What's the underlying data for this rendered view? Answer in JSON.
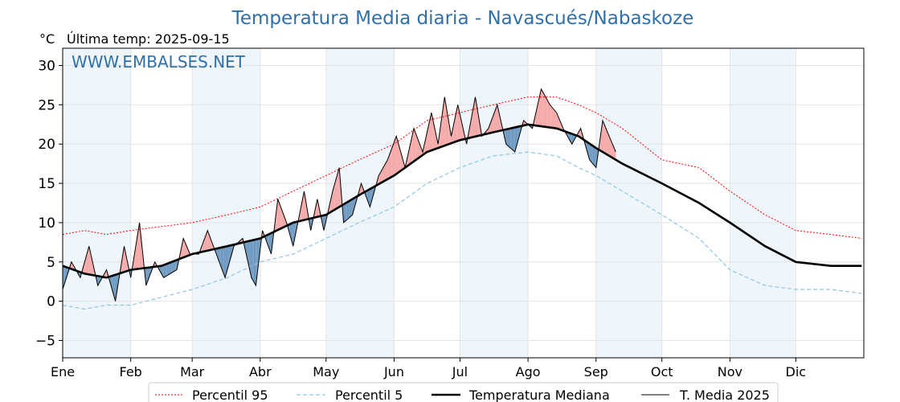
{
  "colors": {
    "title": "#3070a8",
    "p95": "#ff0000",
    "p5": "#8ec8e0",
    "median": "#000000",
    "current": "#000000",
    "above_fill": "#f4a8a8",
    "below_fill": "#6d98c0",
    "band": "#eef5fb",
    "grid": "#e4e4e4"
  },
  "chart_data": {
    "type": "line",
    "title": "Temperatura Media diaria - Navascués/Nabaskoze",
    "unit": "°C",
    "subtitle": "Última temp: 2025-09-15",
    "watermark": "WWW.EMBALSES.NET",
    "x_unit": "day of year",
    "ylim": [
      -7.2,
      32.2
    ],
    "yticks": [
      -5,
      0,
      5,
      10,
      15,
      20,
      25,
      30
    ],
    "months": [
      {
        "label": "Ene",
        "day": 0
      },
      {
        "label": "Feb",
        "day": 31
      },
      {
        "label": "Mar",
        "day": 59
      },
      {
        "label": "Abr",
        "day": 90
      },
      {
        "label": "May",
        "day": 120
      },
      {
        "label": "Jun",
        "day": 151
      },
      {
        "label": "Jul",
        "day": 181
      },
      {
        "label": "Ago",
        "day": 212
      },
      {
        "label": "Sep",
        "day": 243
      },
      {
        "label": "Oct",
        "day": 273
      },
      {
        "label": "Nov",
        "day": 304
      },
      {
        "label": "Dic",
        "day": 334
      }
    ],
    "grid": true,
    "legend_position": "bottom-center",
    "series": [
      {
        "name": "Percentil 95",
        "style": "dotted-red",
        "points": [
          [
            0,
            8.5
          ],
          [
            10,
            9
          ],
          [
            20,
            8.5
          ],
          [
            31,
            9
          ],
          [
            45,
            9.5
          ],
          [
            59,
            10
          ],
          [
            75,
            11
          ],
          [
            90,
            12
          ],
          [
            105,
            14
          ],
          [
            120,
            16
          ],
          [
            135,
            18
          ],
          [
            151,
            20
          ],
          [
            166,
            23
          ],
          [
            181,
            24
          ],
          [
            196,
            25
          ],
          [
            212,
            26
          ],
          [
            225,
            26
          ],
          [
            235,
            25
          ],
          [
            243,
            24
          ],
          [
            255,
            22
          ],
          [
            273,
            18
          ],
          [
            290,
            17
          ],
          [
            304,
            14
          ],
          [
            320,
            11
          ],
          [
            334,
            9
          ],
          [
            350,
            8.5
          ],
          [
            364,
            8
          ]
        ]
      },
      {
        "name": "Percentil 5",
        "style": "dashed-lightblue",
        "points": [
          [
            0,
            -0.5
          ],
          [
            10,
            -1
          ],
          [
            20,
            -0.5
          ],
          [
            31,
            -0.5
          ],
          [
            45,
            0.5
          ],
          [
            59,
            1.5
          ],
          [
            75,
            3
          ],
          [
            90,
            5
          ],
          [
            105,
            6
          ],
          [
            120,
            8
          ],
          [
            135,
            10
          ],
          [
            151,
            12
          ],
          [
            166,
            15
          ],
          [
            181,
            17
          ],
          [
            196,
            18.5
          ],
          [
            212,
            19
          ],
          [
            225,
            18.5
          ],
          [
            235,
            17
          ],
          [
            243,
            16
          ],
          [
            255,
            14
          ],
          [
            273,
            11
          ],
          [
            290,
            8
          ],
          [
            304,
            4
          ],
          [
            320,
            2
          ],
          [
            334,
            1.5
          ],
          [
            350,
            1.5
          ],
          [
            364,
            1
          ]
        ]
      },
      {
        "name": "Temperatura Mediana",
        "style": "thick-black",
        "points": [
          [
            0,
            4.5
          ],
          [
            10,
            3.5
          ],
          [
            20,
            3
          ],
          [
            31,
            4
          ],
          [
            45,
            4.5
          ],
          [
            59,
            6
          ],
          [
            75,
            7
          ],
          [
            90,
            8
          ],
          [
            105,
            10
          ],
          [
            120,
            11
          ],
          [
            135,
            13.5
          ],
          [
            151,
            16
          ],
          [
            166,
            19
          ],
          [
            181,
            20.5
          ],
          [
            196,
            21.5
          ],
          [
            212,
            22.5
          ],
          [
            225,
            22
          ],
          [
            235,
            21
          ],
          [
            243,
            19.5
          ],
          [
            255,
            17.5
          ],
          [
            273,
            15
          ],
          [
            290,
            12.5
          ],
          [
            304,
            10
          ],
          [
            320,
            7
          ],
          [
            334,
            5
          ],
          [
            350,
            4.5
          ],
          [
            364,
            4.5
          ]
        ]
      },
      {
        "name": "T. Media 2025",
        "style": "thin-black",
        "points": [
          [
            0,
            1.5
          ],
          [
            4,
            5
          ],
          [
            8,
            3
          ],
          [
            12,
            7
          ],
          [
            16,
            2
          ],
          [
            20,
            4
          ],
          [
            24,
            0
          ],
          [
            28,
            7
          ],
          [
            31,
            3
          ],
          [
            35,
            10
          ],
          [
            38,
            2
          ],
          [
            42,
            5
          ],
          [
            46,
            3
          ],
          [
            52,
            4
          ],
          [
            55,
            8
          ],
          [
            58,
            6
          ],
          [
            62,
            6
          ],
          [
            66,
            9
          ],
          [
            70,
            6
          ],
          [
            74,
            3
          ],
          [
            78,
            7
          ],
          [
            82,
            8
          ],
          [
            86,
            3
          ],
          [
            88,
            2
          ],
          [
            91,
            9
          ],
          [
            95,
            6
          ],
          [
            98,
            13
          ],
          [
            102,
            10
          ],
          [
            105,
            7
          ],
          [
            110,
            14
          ],
          [
            113,
            9
          ],
          [
            116,
            13
          ],
          [
            119,
            9
          ],
          [
            123,
            14
          ],
          [
            126,
            17
          ],
          [
            128,
            10
          ],
          [
            132,
            11
          ],
          [
            136,
            15
          ],
          [
            140,
            12
          ],
          [
            144,
            16
          ],
          [
            148,
            18
          ],
          [
            152,
            21
          ],
          [
            156,
            17
          ],
          [
            160,
            22
          ],
          [
            164,
            19
          ],
          [
            168,
            24
          ],
          [
            171,
            20
          ],
          [
            174,
            26
          ],
          [
            177,
            21
          ],
          [
            180,
            25
          ],
          [
            184,
            20
          ],
          [
            188,
            26
          ],
          [
            191,
            21
          ],
          [
            194,
            22
          ],
          [
            198,
            25
          ],
          [
            202,
            20
          ],
          [
            206,
            19
          ],
          [
            210,
            23
          ],
          [
            214,
            22
          ],
          [
            218,
            27
          ],
          [
            222,
            25
          ],
          [
            225,
            24
          ],
          [
            228,
            22
          ],
          [
            232,
            20
          ],
          [
            236,
            22
          ],
          [
            240,
            18
          ],
          [
            243,
            17
          ],
          [
            246,
            23
          ],
          [
            249,
            21
          ],
          [
            252,
            19
          ]
        ]
      }
    ]
  },
  "legend": {
    "p95": "Percentil 95",
    "p5": "Percentil 5",
    "median": "Temperatura Mediana",
    "current": "T. Media 2025"
  }
}
